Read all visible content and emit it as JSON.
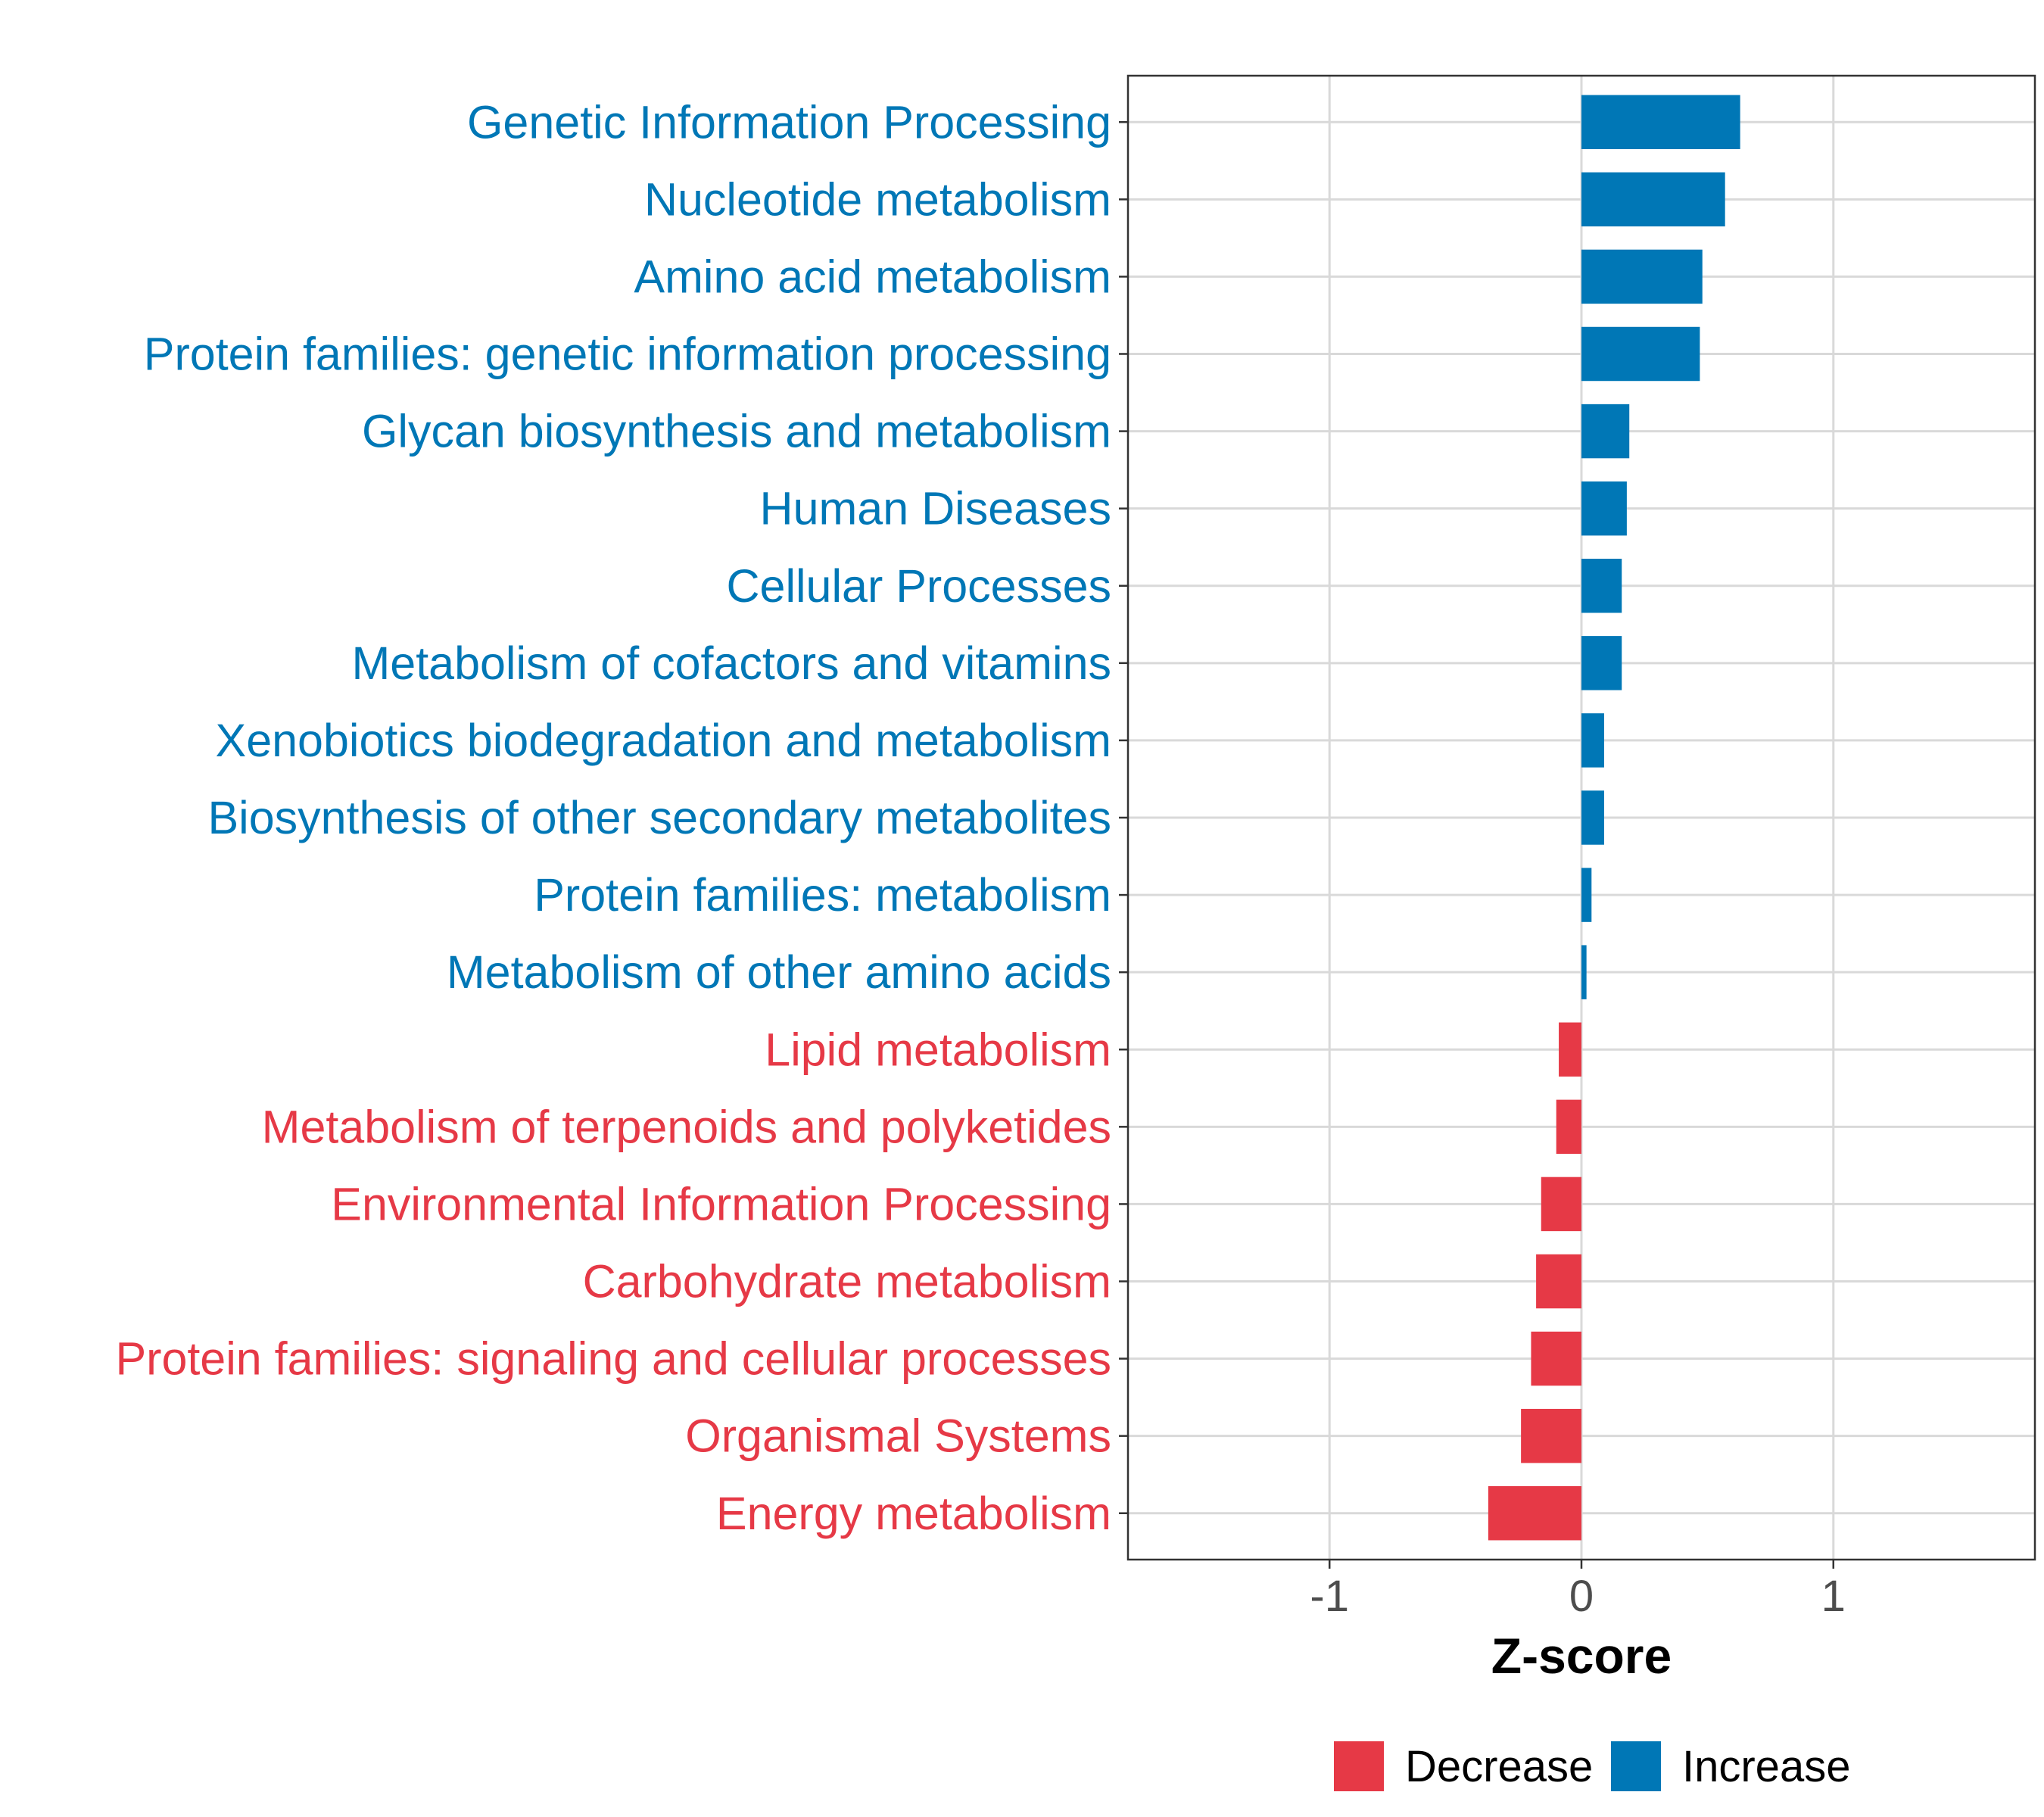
{
  "colors": {
    "increase": "#0077B6",
    "decrease": "#E63946",
    "grid": "#d9d9d9",
    "axis": "#333333"
  },
  "chart_data": {
    "type": "bar",
    "orientation": "horizontal",
    "title": "",
    "xlabel": "Z-score",
    "ylabel": "",
    "xlim": [
      -1.8,
      1.8
    ],
    "xticks": [
      -1,
      0,
      1
    ],
    "xtick_labels": [
      "-1",
      "0",
      "1"
    ],
    "grid": true,
    "legend": {
      "position": "bottom",
      "entries": [
        {
          "label": "Decrease",
          "color_key": "decrease"
        },
        {
          "label": "Increase",
          "color_key": "increase"
        }
      ]
    },
    "categories": [
      "Genetic Information Processing",
      "Nucleotide metabolism",
      "Amino acid metabolism",
      "Protein families: genetic information processing",
      "Glycan biosynthesis and metabolism",
      "Human Diseases",
      "Cellular Processes",
      "Metabolism of cofactors and vitamins",
      "Xenobiotics biodegradation and metabolism",
      "Biosynthesis of other secondary metabolites",
      "Protein families: metabolism",
      "Metabolism of other amino acids",
      "Lipid metabolism",
      "Metabolism of terpenoids and polyketides",
      "Environmental Information Processing",
      "Carbohydrate metabolism",
      "Protein families: signaling and cellular processes",
      "Organismal Systems",
      "Energy metabolism"
    ],
    "values": [
      0.63,
      0.57,
      0.48,
      0.47,
      0.19,
      0.18,
      0.16,
      0.16,
      0.09,
      0.09,
      0.04,
      0.02,
      -0.09,
      -0.1,
      -0.16,
      -0.18,
      -0.2,
      -0.24,
      -0.37
    ],
    "groups": [
      "Increase",
      "Increase",
      "Increase",
      "Increase",
      "Increase",
      "Increase",
      "Increase",
      "Increase",
      "Increase",
      "Increase",
      "Increase",
      "Increase",
      "Decrease",
      "Decrease",
      "Decrease",
      "Decrease",
      "Decrease",
      "Decrease",
      "Decrease"
    ]
  }
}
